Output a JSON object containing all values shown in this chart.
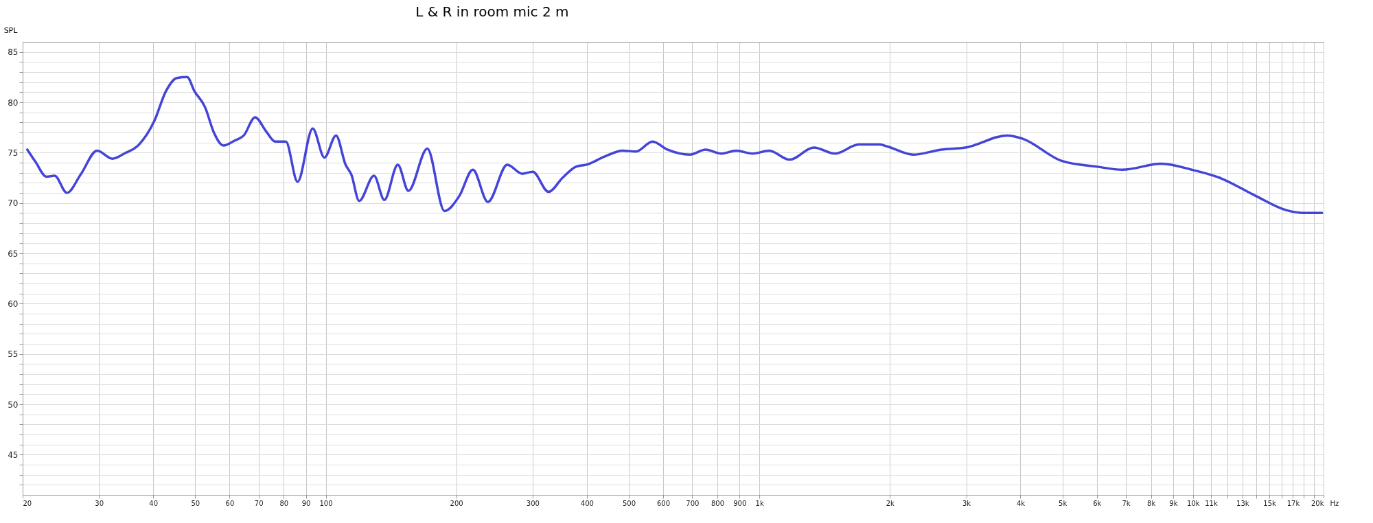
{
  "chart_data": {
    "type": "line",
    "title": "L & R in room mic 2 m",
    "ylabel": "SPL",
    "log": "x",
    "grid": true,
    "line_style": "solid",
    "xlim": [
      20,
      20000
    ],
    "ylim": [
      41,
      86
    ],
    "xticks": [
      20,
      30,
      40,
      50,
      60,
      70,
      80,
      90,
      100,
      200,
      300,
      400,
      500,
      600,
      700,
      800,
      900,
      {
        "value": 1000,
        "label": "1k"
      },
      {
        "value": 2000,
        "label": "2k"
      },
      {
        "value": 3000,
        "label": "3k"
      },
      {
        "value": 4000,
        "label": "4k"
      },
      {
        "value": 5000,
        "label": "5k"
      },
      {
        "value": 6000,
        "label": "6k"
      },
      {
        "value": 7000,
        "label": "7k"
      },
      {
        "value": 8000,
        "label": "8k"
      },
      {
        "value": 9000,
        "label": "9k"
      },
      {
        "value": 10000,
        "label": "10k"
      },
      {
        "value": 11000,
        "label": "11k"
      },
      {
        "value": 12000,
        "label": null
      },
      {
        "value": 13000,
        "label": "13k"
      },
      {
        "value": 14000,
        "label": null
      },
      {
        "value": 15000,
        "label": "15k"
      },
      {
        "value": 16000,
        "label": null
      },
      {
        "value": 17000,
        "label": "17k"
      },
      {
        "value": 18000,
        "label": null
      },
      {
        "value": 19000,
        "label": null
      },
      {
        "value": 20000,
        "label": "20k"
      }
    ],
    "xlabel": "Hz",
    "yticks": [
      {
        "value": 42,
        "label": null
      },
      {
        "value": 43,
        "label": null
      },
      {
        "value": 44,
        "label": null
      },
      45,
      {
        "value": 46,
        "label": null
      },
      {
        "value": 47,
        "label": null
      },
      {
        "value": 48,
        "label": null
      },
      {
        "value": 49,
        "label": null
      },
      50,
      {
        "value": 51,
        "label": null
      },
      {
        "value": 52,
        "label": null
      },
      {
        "value": 53,
        "label": null
      },
      {
        "value": 54,
        "label": null
      },
      55,
      {
        "value": 56,
        "label": null
      },
      {
        "value": 57,
        "label": null
      },
      {
        "value": 58,
        "label": null
      },
      {
        "value": 59,
        "label": null
      },
      60,
      {
        "value": 61,
        "label": null
      },
      {
        "value": 62,
        "label": null
      },
      {
        "value": 63,
        "label": null
      },
      {
        "value": 64,
        "label": null
      },
      65,
      {
        "value": 66,
        "label": null
      },
      {
        "value": 67,
        "label": null
      },
      {
        "value": 68,
        "label": null
      },
      {
        "value": 69,
        "label": null
      },
      70,
      {
        "value": 71,
        "label": null
      },
      {
        "value": 72,
        "label": null
      },
      {
        "value": 73,
        "label": null
      },
      {
        "value": 74,
        "label": null
      },
      75,
      {
        "value": 76,
        "label": null
      },
      {
        "value": 77,
        "label": null
      },
      {
        "value": 78,
        "label": null
      },
      {
        "value": 79,
        "label": null
      },
      80,
      {
        "value": 81,
        "label": null
      },
      {
        "value": 82,
        "label": null
      },
      {
        "value": 83,
        "label": null
      },
      {
        "value": 84,
        "label": null
      },
      85
    ],
    "x": [
      20.5,
      21.4,
      22.7,
      23.7,
      25.3,
      27.2,
      29.7,
      32.2,
      34.3,
      37.1,
      40.2,
      42.8,
      45.3,
      47.9,
      49.8,
      52.7,
      55.2,
      58.1,
      61.7,
      64.7,
      68.7,
      72.9,
      76.4,
      80.9,
      86.1,
      93.3,
      99.3,
      105.6,
      111.1,
      114.6,
      119.4,
      129.2,
      136.5,
      146.6,
      155.1,
      171.5,
      187.8,
      203.3,
      218.4,
      236.5,
      262.2,
      283.8,
      300,
      326.4,
      351.7,
      377.7,
      399.4,
      439.5,
      483.3,
      519.2,
      567,
      613.5,
      691.1,
      751.5,
      816.2,
      884.2,
      964.7,
      1053,
      1173,
      1336,
      1493,
      1696,
      1894,
      1975,
      2261,
      2628,
      2985,
      3729,
      4036,
      4964,
      6008,
      6874,
      8449,
      9936,
      11515,
      13944,
      16343,
      17975,
      19835
    ],
    "series": [
      {
        "color": "#4444d8",
        "values": [
          75.3,
          74.1,
          72.6,
          72.7,
          71.0,
          72.8,
          75.2,
          74.4,
          74.9,
          75.8,
          78.1,
          81.1,
          82.4,
          82.5,
          81.1,
          79.5,
          77.0,
          75.7,
          76.2,
          76.7,
          78.5,
          77.1,
          76.1,
          76.1,
          72.1,
          77.4,
          74.5,
          76.7,
          73.8,
          72.8,
          70.2,
          72.7,
          70.3,
          73.8,
          71.2,
          75.4,
          69.2,
          70.7,
          73.3,
          70.1,
          73.8,
          72.9,
          73.1,
          71.1,
          72.5,
          73.6,
          73.8,
          74.6,
          75.2,
          75.1,
          76.1,
          75.3,
          74.8,
          75.3,
          74.9,
          75.2,
          74.9,
          75.2,
          74.3,
          75.5,
          74.9,
          75.8,
          75.8,
          75.6,
          74.8,
          75.3,
          75.5,
          76.7,
          76.4,
          74.2,
          73.6,
          73.3,
          73.9,
          73.3,
          72.5,
          70.7,
          69.3,
          69.0,
          69.0
        ]
      }
    ]
  }
}
